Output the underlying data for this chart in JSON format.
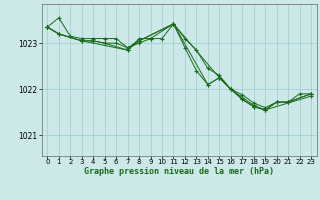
{
  "title": "Graphe pression niveau de la mer (hPa)",
  "bg_color": "#cce8e8",
  "grid_color_major": "#aadddd",
  "grid_color_minor": "#aadddd",
  "line_color": "#1a6b1a",
  "marker_color": "#1a6b1a",
  "xlim": [
    -0.5,
    23.5
  ],
  "ylim": [
    1020.55,
    1023.85
  ],
  "yticks": [
    1021,
    1022,
    1023
  ],
  "xticks": [
    0,
    1,
    2,
    3,
    4,
    5,
    6,
    7,
    8,
    9,
    10,
    11,
    12,
    13,
    14,
    15,
    16,
    17,
    18,
    19,
    20,
    21,
    22,
    23
  ],
  "series": [
    {
      "x": [
        0,
        1,
        2,
        3,
        4,
        5,
        6,
        7,
        8,
        9,
        10,
        11,
        12,
        13,
        14,
        15,
        16,
        17,
        18,
        19,
        20,
        21,
        22,
        23
      ],
      "y": [
        1023.35,
        1023.55,
        1023.15,
        1023.1,
        1023.1,
        1023.1,
        1023.1,
        1022.9,
        1023.0,
        1023.1,
        1023.1,
        1023.42,
        1023.1,
        1022.85,
        1022.45,
        1022.3,
        1022.0,
        1021.88,
        1021.7,
        1021.6,
        1021.72,
        1021.72,
        1021.9,
        1021.9
      ]
    },
    {
      "x": [
        0,
        1,
        3,
        4,
        5,
        6,
        7,
        8,
        11,
        12,
        13,
        14,
        15,
        16,
        17,
        18,
        19,
        20,
        21,
        23
      ],
      "y": [
        1023.35,
        1023.2,
        1023.05,
        1023.05,
        1023.0,
        1023.0,
        1022.9,
        1023.05,
        1023.42,
        1022.9,
        1022.4,
        1022.1,
        1022.25,
        1022.0,
        1021.82,
        1021.65,
        1021.55,
        1021.72,
        1021.72,
        1021.9
      ]
    },
    {
      "x": [
        0,
        1,
        3,
        4,
        5,
        7,
        8,
        11,
        14,
        15,
        16,
        17,
        18,
        19,
        20,
        21,
        23
      ],
      "y": [
        1023.35,
        1023.2,
        1023.05,
        1023.05,
        1023.0,
        1022.85,
        1023.05,
        1023.42,
        1022.1,
        1022.25,
        1022.0,
        1021.78,
        1021.62,
        1021.55,
        1021.72,
        1021.72,
        1021.9
      ]
    },
    {
      "x": [
        0,
        1,
        3,
        7,
        8,
        9,
        11,
        15,
        16,
        17,
        18,
        19,
        23
      ],
      "y": [
        1023.35,
        1023.2,
        1023.05,
        1022.85,
        1023.1,
        1023.1,
        1023.42,
        1022.25,
        1022.0,
        1021.78,
        1021.62,
        1021.55,
        1021.85
      ]
    }
  ]
}
